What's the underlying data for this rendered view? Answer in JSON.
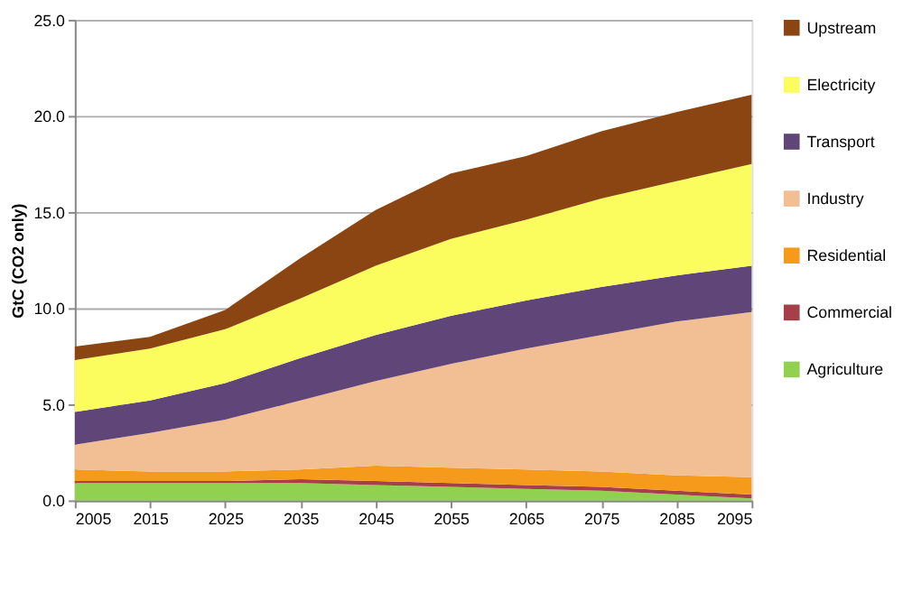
{
  "chart_data": {
    "type": "area",
    "stacked": true,
    "ylabel": "GtC (CO2 only)",
    "x": [
      2005,
      2015,
      2025,
      2035,
      2045,
      2055,
      2065,
      2075,
      2085,
      2095
    ],
    "xlim": [
      2005,
      2095
    ],
    "xticks": [
      2005,
      2015,
      2025,
      2035,
      2045,
      2055,
      2065,
      2075,
      2085,
      2095
    ],
    "ylim": [
      0,
      25
    ],
    "yticks": [
      {
        "value": 0,
        "label": "0.0"
      },
      {
        "value": 5,
        "label": "5.0"
      },
      {
        "value": 10,
        "label": "10.0"
      },
      {
        "value": 15,
        "label": "15.0"
      },
      {
        "value": 20,
        "label": "20.0"
      },
      {
        "value": 25,
        "label": "25.0"
      }
    ],
    "grid": "y",
    "legend": "right",
    "series": [
      {
        "name": "Agriculture",
        "color": "#92d050",
        "values": [
          0.9,
          0.9,
          0.9,
          0.9,
          0.8,
          0.7,
          0.6,
          0.5,
          0.3,
          0.1
        ]
      },
      {
        "name": "Commercial",
        "color": "#a5404a",
        "values": [
          0.1,
          0.1,
          0.1,
          0.2,
          0.2,
          0.2,
          0.2,
          0.2,
          0.2,
          0.2
        ]
      },
      {
        "name": "Residential",
        "color": "#f59a1a",
        "values": [
          0.6,
          0.5,
          0.5,
          0.5,
          0.8,
          0.8,
          0.8,
          0.8,
          0.8,
          0.9
        ]
      },
      {
        "name": "Industry",
        "color": "#f2be93",
        "values": [
          1.3,
          2.0,
          2.7,
          3.6,
          4.4,
          5.4,
          6.3,
          7.1,
          8.0,
          8.6
        ]
      },
      {
        "name": "Transport",
        "color": "#5f4578",
        "values": [
          1.7,
          1.7,
          1.9,
          2.2,
          2.4,
          2.5,
          2.5,
          2.5,
          2.4,
          2.4
        ]
      },
      {
        "name": "Electricity",
        "color": "#fbfd5f",
        "values": [
          2.7,
          2.7,
          2.8,
          3.1,
          3.6,
          4.0,
          4.2,
          4.6,
          4.9,
          5.3
        ]
      },
      {
        "name": "Upstream",
        "color": "#8b4512",
        "values": [
          0.7,
          0.6,
          1.0,
          2.1,
          2.9,
          3.4,
          3.3,
          3.5,
          3.6,
          3.6
        ]
      }
    ]
  }
}
